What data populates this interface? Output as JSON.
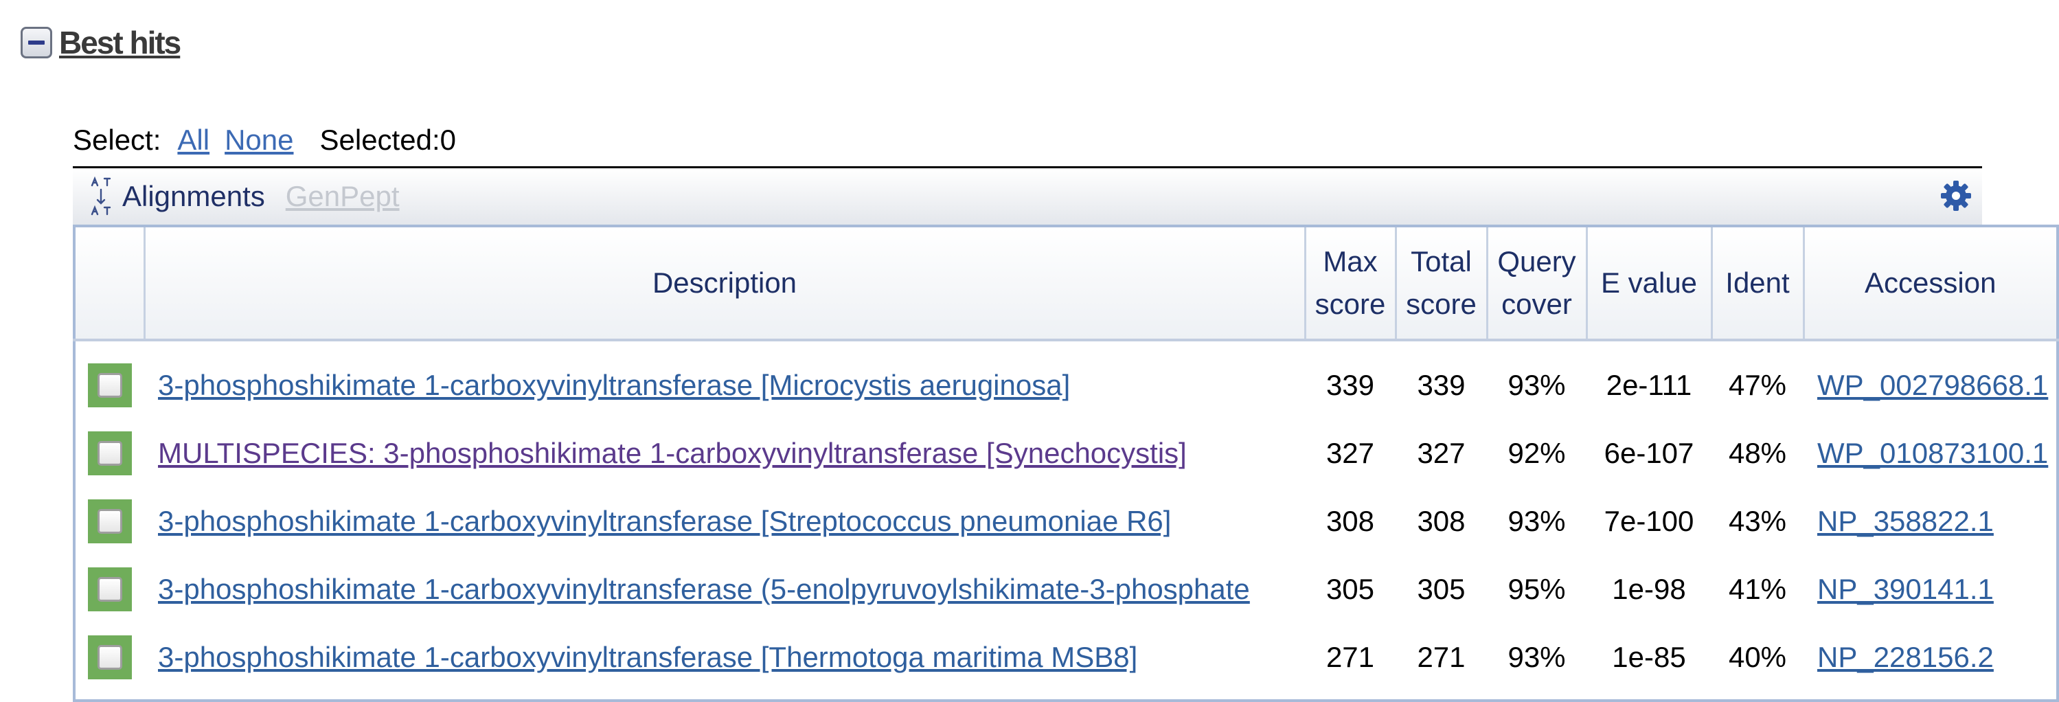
{
  "section": {
    "title": "Best hits"
  },
  "selection": {
    "prefix": "Select:",
    "all": "All",
    "none": "None",
    "selected": "Selected:0"
  },
  "toolbar": {
    "alignments": "Alignments",
    "genpept": "GenPept",
    "icons": [
      "sort-icon",
      "gear-icon"
    ]
  },
  "table": {
    "headers": {
      "description": "Description",
      "max_score": [
        "Max",
        "score"
      ],
      "total_score": [
        "Total",
        "score"
      ],
      "query_cover": [
        "Query",
        "cover"
      ],
      "e_value": "E value",
      "ident": "Ident",
      "accession": "Accession"
    },
    "rows": [
      {
        "description": "3-phosphoshikimate 1-carboxyvinyltransferase [Microcystis aeruginosa]",
        "max_score": "339",
        "total_score": "339",
        "query_cover": "93%",
        "e_value": "2e-111",
        "ident": "47%",
        "accession": "WP_002798668.1"
      },
      {
        "description": "MULTISPECIES: 3-phosphoshikimate 1-carboxyvinyltransferase [Synechocystis]",
        "max_score": "327",
        "total_score": "327",
        "query_cover": "92%",
        "e_value": "6e-107",
        "ident": "48%",
        "accession": "WP_010873100.1"
      },
      {
        "description": "3-phosphoshikimate 1-carboxyvinyltransferase [Streptococcus pneumoniae R6]",
        "max_score": "308",
        "total_score": "308",
        "query_cover": "93%",
        "e_value": "7e-100",
        "ident": "43%",
        "accession": "NP_358822.1"
      },
      {
        "description": "3-phosphoshikimate 1-carboxyvinyltransferase (5-enolpyruvoylshikimate-3-phosphate",
        "max_score": "305",
        "total_score": "305",
        "query_cover": "95%",
        "e_value": "1e-98",
        "ident": "41%",
        "accession": "NP_390141.1"
      },
      {
        "description": "3-phosphoshikimate 1-carboxyvinyltransferase [Thermotoga maritima MSB8]",
        "max_score": "271",
        "total_score": "271",
        "query_cover": "93%",
        "e_value": "1e-85",
        "ident": "40%",
        "accession": "NP_228156.2"
      }
    ]
  },
  "colors": {
    "link": "#2f5f9e",
    "visited_link": "#5b3a8c",
    "checkbox_green": "#70ad5a",
    "header_text": "#1d2f66",
    "table_border": "#a7bad8"
  }
}
